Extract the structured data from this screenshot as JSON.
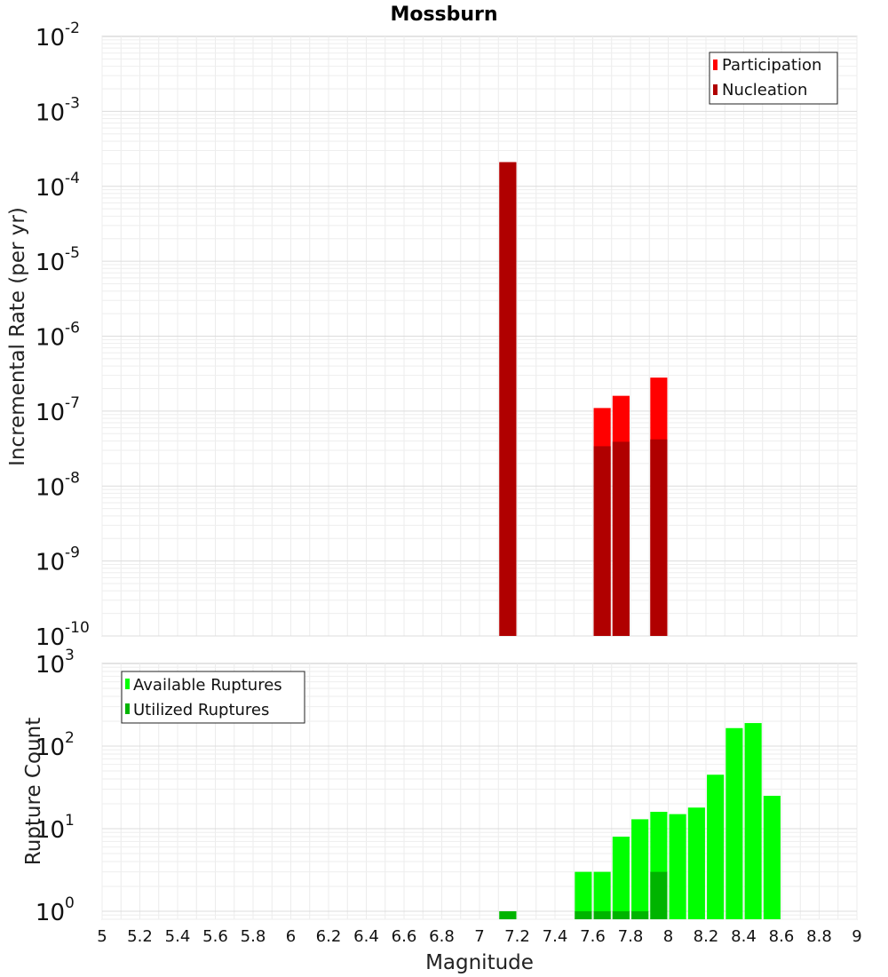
{
  "chart_data": [
    {
      "type": "bar",
      "title": "Mossburn",
      "xlabel": "",
      "ylabel": "Incremental Rate (per yr)",
      "xlim": [
        5,
        9
      ],
      "ylim": [
        1e-10,
        0.01
      ],
      "yscale": "log",
      "ytick_exponents": [
        -10,
        -9,
        -8,
        -7,
        -6,
        -5,
        -4,
        -3,
        -2
      ],
      "bar_width": 0.09,
      "grid": true,
      "legend_position": "top-right",
      "series": [
        {
          "name": "Participation",
          "color": "#ff0000",
          "x": [
            7.15,
            7.65,
            7.75,
            7.95
          ],
          "values": [
            0.00021,
            1.1e-07,
            1.6e-07,
            2.8e-07
          ]
        },
        {
          "name": "Nucleation",
          "color": "#b00000",
          "x": [
            7.15,
            7.65,
            7.75,
            7.95
          ],
          "values": [
            0.00021,
            3.4e-08,
            3.9e-08,
            4.2e-08
          ]
        }
      ]
    },
    {
      "type": "bar",
      "title": "",
      "xlabel": "Magnitude",
      "ylabel": "Rupture Count",
      "xlim": [
        5,
        9
      ],
      "ylim": [
        0.8,
        1000
      ],
      "yscale": "log",
      "ytick_exponents": [
        0,
        1,
        2,
        3
      ],
      "xticks": [
        "5",
        "5.2",
        "5.4",
        "5.6",
        "5.8",
        "6",
        "6.2",
        "6.4",
        "6.6",
        "6.8",
        "7",
        "7.2",
        "7.4",
        "7.6",
        "7.8",
        "8",
        "8.2",
        "8.4",
        "8.6",
        "8.8",
        "9"
      ],
      "bar_width": 0.09,
      "grid": true,
      "legend_position": "top-left",
      "series": [
        {
          "name": "Available Ruptures",
          "color": "#00ff00",
          "x": [
            7.15,
            7.55,
            7.65,
            7.75,
            7.85,
            7.95,
            8.05,
            8.15,
            8.25,
            8.35,
            8.45,
            8.55
          ],
          "values": [
            1,
            3,
            3,
            8,
            13,
            16,
            15,
            18,
            45,
            165,
            190,
            25
          ]
        },
        {
          "name": "Utilized Ruptures",
          "color": "#00b400",
          "x": [
            7.15,
            7.55,
            7.65,
            7.75,
            7.85,
            7.95
          ],
          "values": [
            1,
            1,
            1,
            1,
            1,
            3
          ]
        }
      ]
    }
  ]
}
